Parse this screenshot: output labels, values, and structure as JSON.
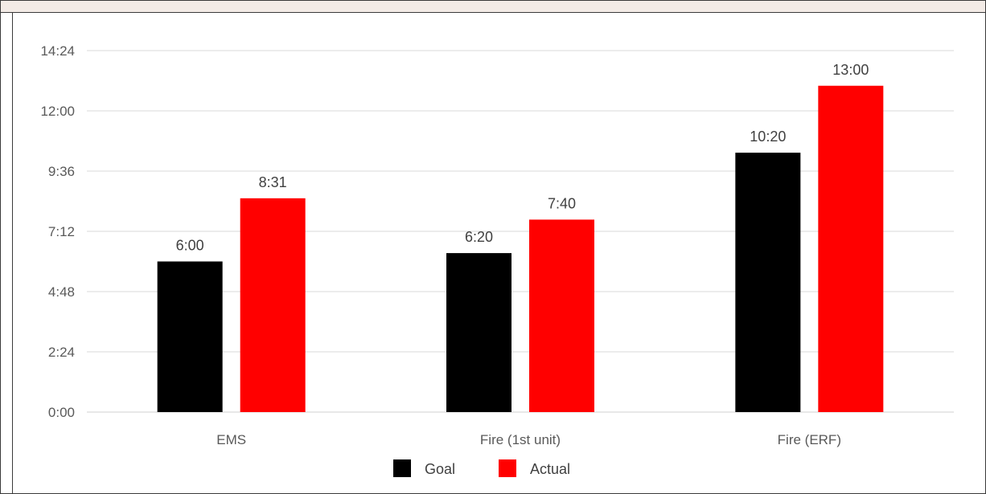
{
  "chart_data": {
    "type": "bar",
    "categories": [
      "EMS",
      "Fire (1st unit)",
      "Fire (ERF)"
    ],
    "series": [
      {
        "name": "Goal",
        "values": [
          6.0,
          6.333,
          10.333
        ],
        "labels": [
          "6:00",
          "6:20",
          "10:20"
        ],
        "color": "#000000"
      },
      {
        "name": "Actual",
        "values": [
          8.517,
          7.667,
          13.0
        ],
        "labels": [
          "8:31",
          "7:40",
          "13:00"
        ],
        "color": "#ff0000"
      }
    ],
    "ylim": [
      0,
      14.4
    ],
    "yticks": [
      0,
      2.4,
      4.8,
      7.2,
      9.6,
      12.0,
      14.4
    ],
    "ytick_labels": [
      "0:00",
      "2:24",
      "4:48",
      "7:12",
      "9:36",
      "12:00",
      "14:24"
    ],
    "y_unit": "minutes",
    "xlabel": "",
    "ylabel": "",
    "grid": true,
    "legend_position": "bottom"
  }
}
